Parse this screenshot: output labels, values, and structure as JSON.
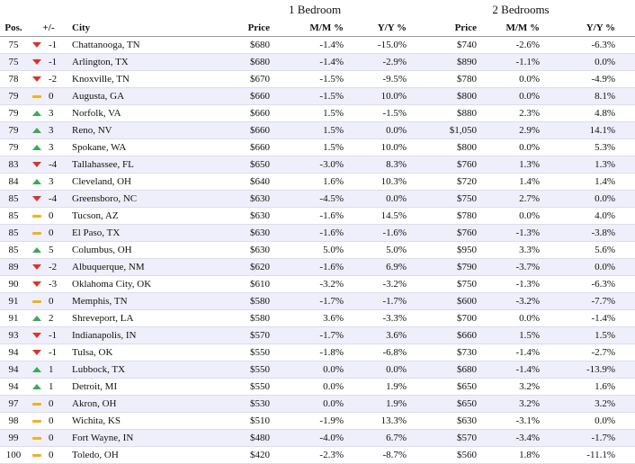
{
  "groups": {
    "one_bedroom": "1 Bedroom",
    "two_bedrooms": "2 Bedrooms"
  },
  "headers": {
    "pos": "Pos.",
    "change": "+/-",
    "city": "City",
    "price1": "Price",
    "mm1": "M/M %",
    "yy1": "Y/Y %",
    "price2": "Price",
    "mm2": "M/M %",
    "yy2": "Y/Y %"
  },
  "colors": {
    "up": "#3aaa58",
    "down": "#d9342b",
    "same": "#f2b21a",
    "stripe": "#efeffb"
  },
  "rows": [
    {
      "pos": "75",
      "trend": "down",
      "chg": "-1",
      "city": "Chattanooga, TN",
      "p1": "$680",
      "mm1": "-1.4%",
      "yy1": "-15.0%",
      "p2": "$740",
      "mm2": "-2.6%",
      "yy2": "-6.3%"
    },
    {
      "pos": "75",
      "trend": "down",
      "chg": "-1",
      "city": "Arlington, TX",
      "p1": "$680",
      "mm1": "-1.4%",
      "yy1": "-2.9%",
      "p2": "$890",
      "mm2": "-1.1%",
      "yy2": "0.0%"
    },
    {
      "pos": "78",
      "trend": "down",
      "chg": "-2",
      "city": "Knoxville, TN",
      "p1": "$670",
      "mm1": "-1.5%",
      "yy1": "-9.5%",
      "p2": "$780",
      "mm2": "0.0%",
      "yy2": "-4.9%"
    },
    {
      "pos": "79",
      "trend": "same",
      "chg": "0",
      "city": "Augusta, GA",
      "p1": "$660",
      "mm1": "-1.5%",
      "yy1": "10.0%",
      "p2": "$800",
      "mm2": "0.0%",
      "yy2": "8.1%"
    },
    {
      "pos": "79",
      "trend": "up",
      "chg": "3",
      "city": "Norfolk, VA",
      "p1": "$660",
      "mm1": "1.5%",
      "yy1": "-1.5%",
      "p2": "$880",
      "mm2": "2.3%",
      "yy2": "4.8%"
    },
    {
      "pos": "79",
      "trend": "up",
      "chg": "3",
      "city": "Reno, NV",
      "p1": "$660",
      "mm1": "1.5%",
      "yy1": "0.0%",
      "p2": "$1,050",
      "mm2": "2.9%",
      "yy2": "14.1%"
    },
    {
      "pos": "79",
      "trend": "up",
      "chg": "3",
      "city": "Spokane, WA",
      "p1": "$660",
      "mm1": "1.5%",
      "yy1": "10.0%",
      "p2": "$800",
      "mm2": "0.0%",
      "yy2": "5.3%"
    },
    {
      "pos": "83",
      "trend": "down",
      "chg": "-4",
      "city": "Tallahassee, FL",
      "p1": "$650",
      "mm1": "-3.0%",
      "yy1": "8.3%",
      "p2": "$760",
      "mm2": "1.3%",
      "yy2": "1.3%"
    },
    {
      "pos": "84",
      "trend": "up",
      "chg": "3",
      "city": "Cleveland, OH",
      "p1": "$640",
      "mm1": "1.6%",
      "yy1": "10.3%",
      "p2": "$720",
      "mm2": "1.4%",
      "yy2": "1.4%"
    },
    {
      "pos": "85",
      "trend": "down",
      "chg": "-4",
      "city": "Greensboro, NC",
      "p1": "$630",
      "mm1": "-4.5%",
      "yy1": "0.0%",
      "p2": "$750",
      "mm2": "2.7%",
      "yy2": "0.0%"
    },
    {
      "pos": "85",
      "trend": "same",
      "chg": "0",
      "city": "Tucson, AZ",
      "p1": "$630",
      "mm1": "-1.6%",
      "yy1": "14.5%",
      "p2": "$780",
      "mm2": "0.0%",
      "yy2": "4.0%"
    },
    {
      "pos": "85",
      "trend": "same",
      "chg": "0",
      "city": "El Paso, TX",
      "p1": "$630",
      "mm1": "-1.6%",
      "yy1": "-1.6%",
      "p2": "$760",
      "mm2": "-1.3%",
      "yy2": "-3.8%"
    },
    {
      "pos": "85",
      "trend": "up",
      "chg": "5",
      "city": "Columbus, OH",
      "p1": "$630",
      "mm1": "5.0%",
      "yy1": "5.0%",
      "p2": "$950",
      "mm2": "3.3%",
      "yy2": "5.6%"
    },
    {
      "pos": "89",
      "trend": "down",
      "chg": "-2",
      "city": "Albuquerque, NM",
      "p1": "$620",
      "mm1": "-1.6%",
      "yy1": "6.9%",
      "p2": "$790",
      "mm2": "-3.7%",
      "yy2": "0.0%"
    },
    {
      "pos": "90",
      "trend": "down",
      "chg": "-3",
      "city": "Oklahoma City, OK",
      "p1": "$610",
      "mm1": "-3.2%",
      "yy1": "-3.2%",
      "p2": "$750",
      "mm2": "-1.3%",
      "yy2": "-6.3%"
    },
    {
      "pos": "91",
      "trend": "same",
      "chg": "0",
      "city": "Memphis, TN",
      "p1": "$580",
      "mm1": "-1.7%",
      "yy1": "-1.7%",
      "p2": "$600",
      "mm2": "-3.2%",
      "yy2": "-7.7%"
    },
    {
      "pos": "91",
      "trend": "up",
      "chg": "2",
      "city": "Shreveport, LA",
      "p1": "$580",
      "mm1": "3.6%",
      "yy1": "-3.3%",
      "p2": "$700",
      "mm2": "0.0%",
      "yy2": "-1.4%"
    },
    {
      "pos": "93",
      "trend": "down",
      "chg": "-1",
      "city": "Indianapolis, IN",
      "p1": "$570",
      "mm1": "-1.7%",
      "yy1": "3.6%",
      "p2": "$660",
      "mm2": "1.5%",
      "yy2": "1.5%"
    },
    {
      "pos": "94",
      "trend": "down",
      "chg": "-1",
      "city": "Tulsa, OK",
      "p1": "$550",
      "mm1": "-1.8%",
      "yy1": "-6.8%",
      "p2": "$730",
      "mm2": "-1.4%",
      "yy2": "-2.7%"
    },
    {
      "pos": "94",
      "trend": "up",
      "chg": "1",
      "city": "Lubbock, TX",
      "p1": "$550",
      "mm1": "0.0%",
      "yy1": "0.0%",
      "p2": "$680",
      "mm2": "-1.4%",
      "yy2": "-13.9%"
    },
    {
      "pos": "94",
      "trend": "up",
      "chg": "1",
      "city": "Detroit, MI",
      "p1": "$550",
      "mm1": "0.0%",
      "yy1": "1.9%",
      "p2": "$650",
      "mm2": "3.2%",
      "yy2": "1.6%"
    },
    {
      "pos": "97",
      "trend": "same",
      "chg": "0",
      "city": "Akron, OH",
      "p1": "$530",
      "mm1": "0.0%",
      "yy1": "1.9%",
      "p2": "$650",
      "mm2": "3.2%",
      "yy2": "3.2%"
    },
    {
      "pos": "98",
      "trend": "same",
      "chg": "0",
      "city": "Wichita, KS",
      "p1": "$510",
      "mm1": "-1.9%",
      "yy1": "13.3%",
      "p2": "$630",
      "mm2": "-3.1%",
      "yy2": "0.0%"
    },
    {
      "pos": "99",
      "trend": "same",
      "chg": "0",
      "city": "Fort Wayne, IN",
      "p1": "$480",
      "mm1": "-4.0%",
      "yy1": "6.7%",
      "p2": "$570",
      "mm2": "-3.4%",
      "yy2": "-1.7%"
    },
    {
      "pos": "100",
      "trend": "same",
      "chg": "0",
      "city": "Toledo, OH",
      "p1": "$420",
      "mm1": "-2.3%",
      "yy1": "-8.7%",
      "p2": "$560",
      "mm2": "1.8%",
      "yy2": "-11.1%"
    }
  ]
}
